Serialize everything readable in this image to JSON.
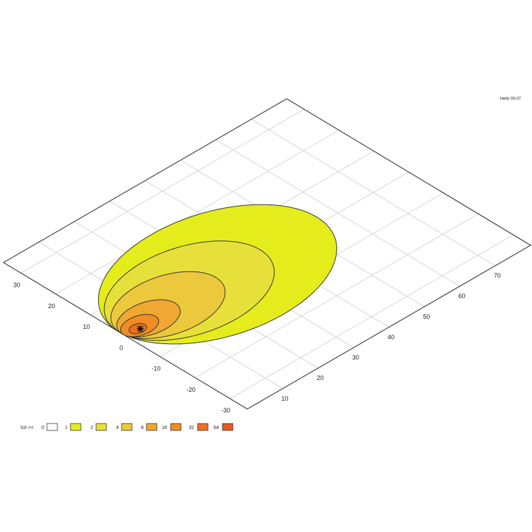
{
  "chart_data": {
    "type": "contour",
    "annotation": "Hello 09.07",
    "legend_title": "lcit >=",
    "levels": [
      0,
      1,
      2,
      4,
      8,
      16,
      32,
      64
    ],
    "colors": [
      "#ffffff",
      "#e4ec1c",
      "#e8e03a",
      "#ecc83c",
      "#f0a832",
      "#f08c24",
      "#ec7020",
      "#e65a1c"
    ],
    "contours": [
      {
        "center": [
          28,
          2
        ],
        "radii": [
          28,
          19
        ]
      },
      {
        "center": [
          20,
          2
        ],
        "radii": [
          20,
          13.5
        ]
      },
      {
        "center": [
          13.5,
          1.5
        ],
        "radii": [
          13.5,
          9
        ]
      },
      {
        "center": [
          7.5,
          1
        ],
        "radii": [
          7.5,
          5
        ]
      },
      {
        "center": [
          4.5,
          0.5
        ],
        "radii": [
          4.5,
          3
        ]
      },
      {
        "center": [
          3.5,
          0
        ],
        "radii": [
          2,
          1.5
        ]
      }
    ],
    "peak": [
      3.8,
      -0.4
    ],
    "xlim": [
      0,
      80
    ],
    "xticks": [
      10,
      20,
      30,
      40,
      50,
      60,
      70
    ],
    "ylim": [
      -35,
      35
    ],
    "yticks": [
      -30,
      -20,
      -10,
      0,
      10,
      20,
      30
    ],
    "grid": true
  }
}
